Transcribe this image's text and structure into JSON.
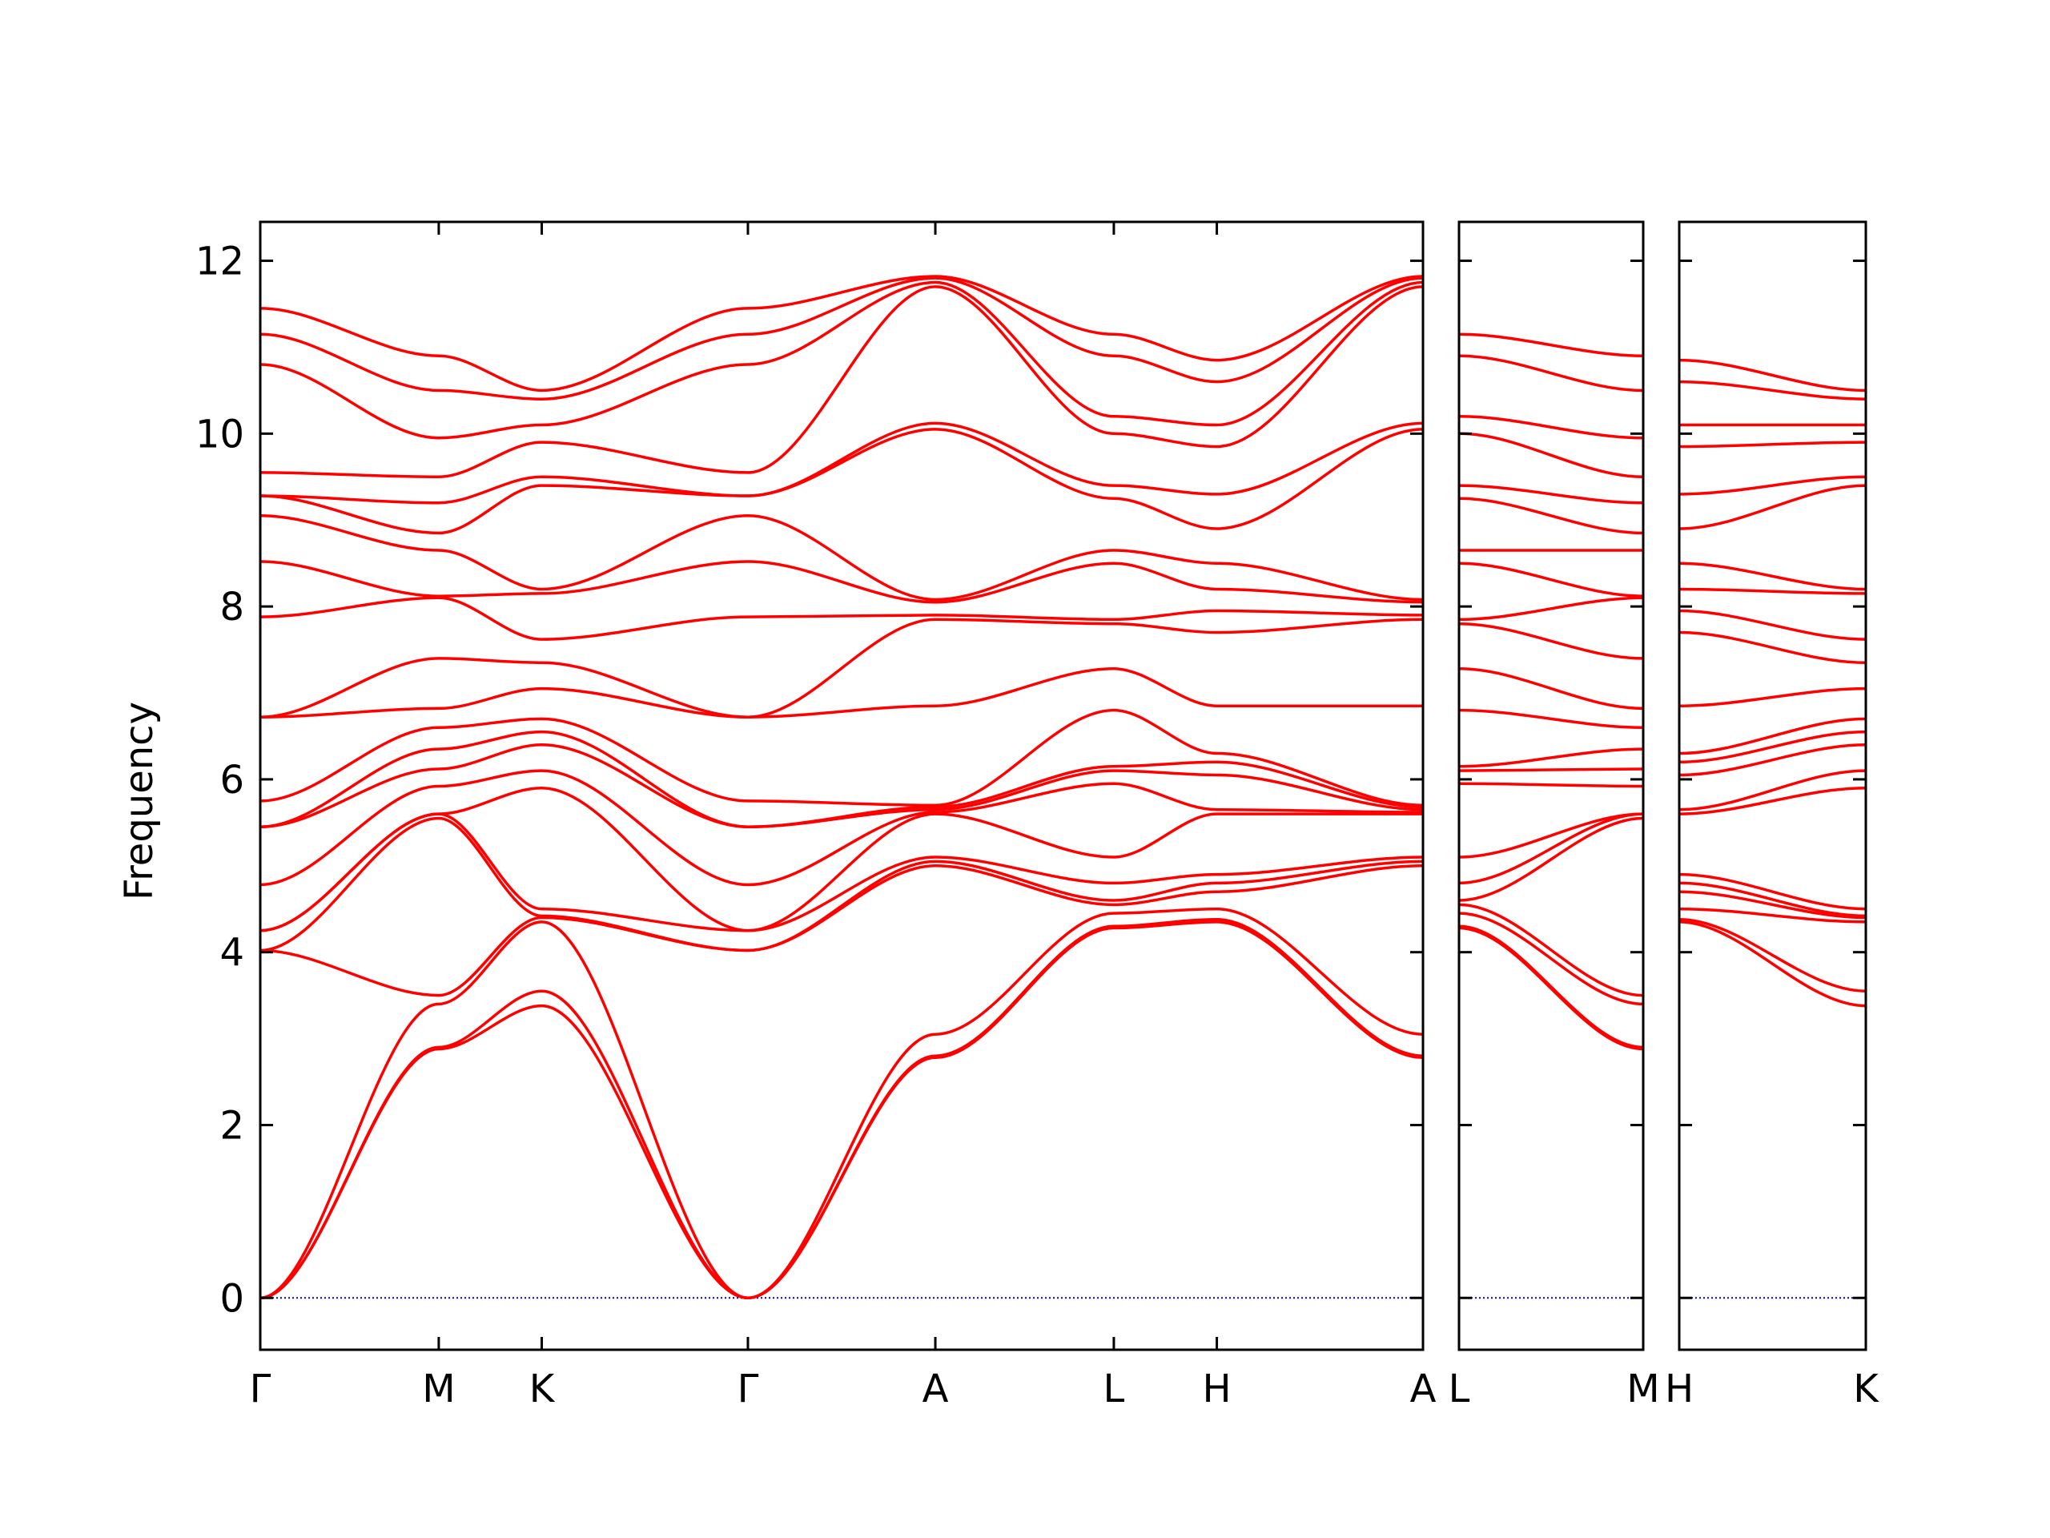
{
  "chart_data": {
    "type": "line",
    "ylabel": "Frequency",
    "xlabel": "",
    "ylim": [
      -0.6,
      12.45
    ],
    "y_ticks": [
      0,
      2,
      4,
      6,
      8,
      10,
      12
    ],
    "grid": false,
    "line_color": "#ff0000",
    "zero_line_color": "#0000cc",
    "panels": [
      {
        "segments": [
          {
            "from": "Γ",
            "to": "M",
            "length": 1.0
          },
          {
            "from": "M",
            "to": "K",
            "length": 0.577
          },
          {
            "from": "K",
            "to": "Γ",
            "length": 1.155
          },
          {
            "from": "Γ",
            "to": "A",
            "length": 1.05
          },
          {
            "from": "A",
            "to": "L",
            "length": 1.0
          },
          {
            "from": "L",
            "to": "H",
            "length": 0.577
          },
          {
            "from": "H",
            "to": "A",
            "length": 1.155
          }
        ],
        "tick_labels": [
          "Γ",
          "M",
          "K",
          "Γ",
          "A",
          "L",
          "H",
          "A"
        ],
        "bands": [
          [
            0,
            2.88,
            3.38,
            0,
            2.78,
            4.28,
            4.35,
            2.78
          ],
          [
            0,
            2.9,
            3.55,
            0,
            2.8,
            4.3,
            4.38,
            2.8
          ],
          [
            0,
            3.4,
            4.35,
            0,
            3.05,
            4.45,
            4.5,
            3.05
          ],
          [
            4.02,
            3.5,
            4.4,
            4.02,
            5.0,
            4.55,
            4.7,
            5.0
          ],
          [
            4.02,
            5.55,
            4.42,
            4.02,
            5.05,
            4.6,
            4.8,
            5.05
          ],
          [
            4.25,
            5.6,
            4.5,
            4.25,
            5.1,
            4.8,
            4.9,
            5.1
          ],
          [
            4.25,
            5.6,
            5.9,
            4.25,
            5.6,
            5.1,
            5.6,
            5.6
          ],
          [
            4.78,
            5.92,
            6.1,
            4.78,
            5.62,
            5.95,
            5.65,
            5.62
          ],
          [
            5.45,
            6.12,
            6.4,
            5.45,
            5.65,
            6.1,
            6.05,
            5.65
          ],
          [
            5.45,
            6.35,
            6.55,
            5.45,
            5.68,
            6.15,
            6.2,
            5.68
          ],
          [
            5.75,
            6.6,
            6.7,
            5.75,
            5.7,
            6.8,
            6.3,
            5.7
          ],
          [
            6.72,
            6.82,
            7.05,
            6.72,
            6.85,
            7.28,
            6.85,
            6.85
          ],
          [
            6.72,
            7.4,
            7.35,
            6.72,
            7.85,
            7.8,
            7.7,
            7.85
          ],
          [
            7.88,
            8.1,
            7.62,
            7.88,
            7.9,
            7.85,
            7.95,
            7.9
          ],
          [
            8.52,
            8.12,
            8.15,
            8.52,
            8.05,
            8.5,
            8.2,
            8.05
          ],
          [
            9.05,
            8.65,
            8.2,
            9.05,
            8.08,
            8.65,
            8.5,
            8.08
          ],
          [
            9.28,
            8.85,
            9.4,
            9.28,
            10.05,
            9.25,
            8.9,
            10.05
          ],
          [
            9.28,
            9.2,
            9.5,
            9.28,
            10.12,
            9.4,
            9.3,
            10.12
          ],
          [
            9.55,
            9.5,
            9.9,
            9.55,
            11.7,
            10.0,
            9.85,
            11.7
          ],
          [
            10.8,
            9.95,
            10.1,
            10.8,
            11.75,
            10.2,
            10.1,
            11.75
          ],
          [
            11.15,
            10.5,
            10.4,
            11.15,
            11.8,
            10.9,
            10.6,
            11.8
          ],
          [
            11.45,
            10.9,
            10.5,
            11.45,
            11.82,
            11.15,
            10.85,
            11.82
          ]
        ]
      },
      {
        "segments": [
          {
            "from": "L",
            "to": "M",
            "length": 1.0
          }
        ],
        "tick_labels": [
          "L",
          "M"
        ],
        "bands": [
          [
            4.28,
            2.88
          ],
          [
            4.3,
            2.9
          ],
          [
            4.45,
            3.4
          ],
          [
            4.55,
            3.5
          ],
          [
            4.6,
            5.55
          ],
          [
            4.8,
            5.6
          ],
          [
            5.1,
            5.6
          ],
          [
            5.95,
            5.92
          ],
          [
            6.1,
            6.12
          ],
          [
            6.15,
            6.35
          ],
          [
            6.8,
            6.6
          ],
          [
            7.28,
            6.82
          ],
          [
            7.8,
            7.4
          ],
          [
            7.85,
            8.1
          ],
          [
            8.5,
            8.12
          ],
          [
            8.65,
            8.65
          ],
          [
            9.25,
            8.85
          ],
          [
            9.4,
            9.2
          ],
          [
            10.0,
            9.5
          ],
          [
            10.2,
            9.95
          ],
          [
            10.9,
            10.5
          ],
          [
            11.15,
            10.9
          ]
        ]
      },
      {
        "segments": [
          {
            "from": "H",
            "to": "K",
            "length": 1.0
          }
        ],
        "tick_labels": [
          "H",
          "K"
        ],
        "bands": [
          [
            4.35,
            3.38
          ],
          [
            4.38,
            3.55
          ],
          [
            4.5,
            4.35
          ],
          [
            4.7,
            4.4
          ],
          [
            4.8,
            4.42
          ],
          [
            4.9,
            4.5
          ],
          [
            5.6,
            5.9
          ],
          [
            5.65,
            6.1
          ],
          [
            6.05,
            6.4
          ],
          [
            6.2,
            6.55
          ],
          [
            6.3,
            6.7
          ],
          [
            6.85,
            7.05
          ],
          [
            7.7,
            7.35
          ],
          [
            7.95,
            7.62
          ],
          [
            8.2,
            8.15
          ],
          [
            8.5,
            8.2
          ],
          [
            8.9,
            9.4
          ],
          [
            9.3,
            9.5
          ],
          [
            9.85,
            9.9
          ],
          [
            10.1,
            10.1
          ],
          [
            10.6,
            10.4
          ],
          [
            10.85,
            10.5
          ]
        ]
      }
    ]
  }
}
